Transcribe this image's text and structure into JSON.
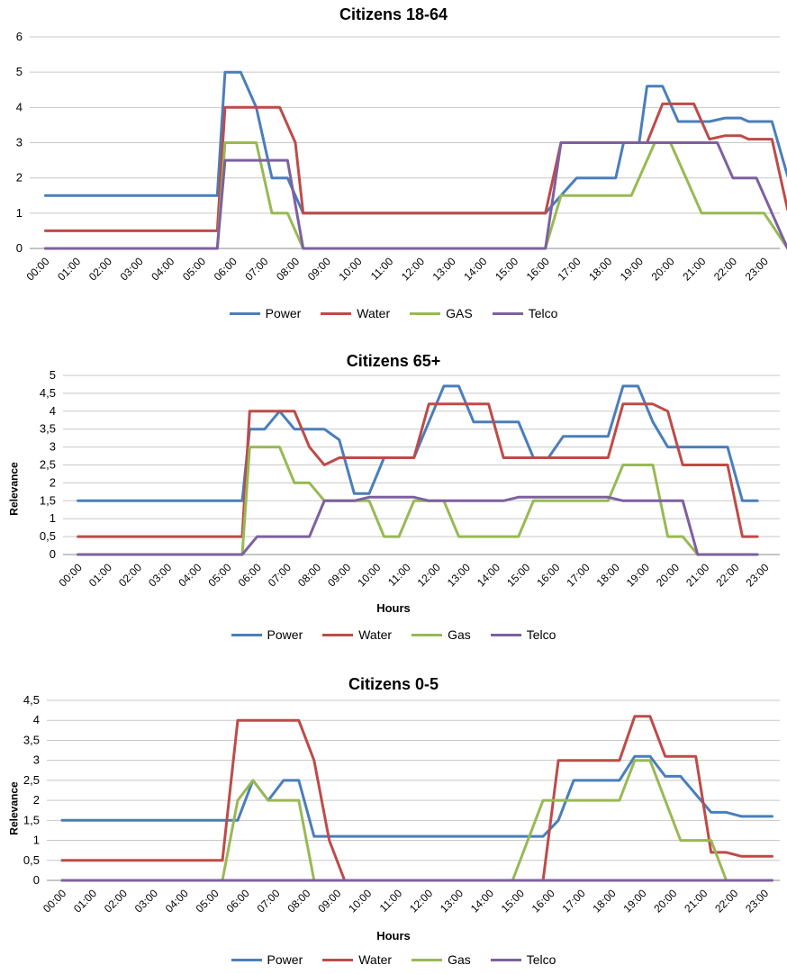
{
  "colors": {
    "Power": "#4a7ebb",
    "Water": "#be4b48",
    "GAS": "#98b954",
    "Gas": "#98b954",
    "Telco": "#7d60a0"
  },
  "chart_data": [
    {
      "type": "line",
      "title": "Citizens 18-64",
      "xlabel": "",
      "ylabel": "",
      "ylim": [
        0,
        6
      ],
      "yticks": [
        "0",
        "1",
        "2",
        "3",
        "4",
        "5",
        "6"
      ],
      "grid": true,
      "legend_position": "bottom",
      "xticks": [
        "00:00",
        "01:00",
        "02:00",
        "03:00",
        "04:00",
        "05:00",
        "06:00",
        "07:00",
        "08:00",
        "09:00",
        "10:00",
        "11:00",
        "12:00",
        "13:00",
        "14:00",
        "15:00",
        "16:00",
        "17:00",
        "18:00",
        "19:00",
        "20:00",
        "21:00",
        "22:00",
        "23:00"
      ],
      "series": [
        {
          "name": "Power",
          "points": [
            [
              0,
              1.5
            ],
            [
              5.5,
              1.5
            ],
            [
              5.75,
              5
            ],
            [
              6.25,
              5
            ],
            [
              6.75,
              4
            ],
            [
              7,
              3
            ],
            [
              7.25,
              2
            ],
            [
              7.75,
              2
            ],
            [
              8.25,
              1
            ],
            [
              16,
              1
            ],
            [
              16.5,
              1.5
            ],
            [
              17,
              2
            ],
            [
              18.25,
              2
            ],
            [
              18.5,
              3
            ],
            [
              19,
              3
            ],
            [
              19.25,
              4.6
            ],
            [
              19.75,
              4.6
            ],
            [
              20.25,
              3.6
            ],
            [
              21,
              3.6
            ],
            [
              21.25,
              3.6
            ],
            [
              21.75,
              3.7
            ],
            [
              22.25,
              3.7
            ],
            [
              22.5,
              3.6
            ],
            [
              23.25,
              3.6
            ],
            [
              23.75,
              2.05
            ]
          ]
        },
        {
          "name": "Water",
          "points": [
            [
              0,
              0.5
            ],
            [
              5.5,
              0.5
            ],
            [
              5.75,
              4
            ],
            [
              7.25,
              4
            ],
            [
              7.5,
              4
            ],
            [
              8,
              3
            ],
            [
              8.25,
              1
            ],
            [
              16,
              1
            ],
            [
              16.5,
              3
            ],
            [
              19.25,
              3
            ],
            [
              19.75,
              4.1
            ],
            [
              20.75,
              4.1
            ],
            [
              21.25,
              3.1
            ],
            [
              21.75,
              3.2
            ],
            [
              22.25,
              3.2
            ],
            [
              22.5,
              3.1
            ],
            [
              23.25,
              3.1
            ],
            [
              23.75,
              1.1
            ]
          ]
        },
        {
          "name": "GAS",
          "points": [
            [
              0,
              0
            ],
            [
              5.5,
              0
            ],
            [
              5.75,
              3
            ],
            [
              6.75,
              3
            ],
            [
              7.25,
              1
            ],
            [
              7.75,
              1
            ],
            [
              8.25,
              0
            ],
            [
              16,
              0
            ],
            [
              16.5,
              1.5
            ],
            [
              18.75,
              1.5
            ],
            [
              19.5,
              3
            ],
            [
              20,
              3
            ],
            [
              21,
              1
            ],
            [
              23,
              1
            ],
            [
              23.75,
              0
            ]
          ]
        },
        {
          "name": "Telco",
          "points": [
            [
              0,
              0
            ],
            [
              5.5,
              0
            ],
            [
              5.75,
              2.5
            ],
            [
              7.75,
              2.5
            ],
            [
              8.25,
              0
            ],
            [
              16,
              0
            ],
            [
              16.5,
              3
            ],
            [
              21.5,
              3
            ],
            [
              22,
              2
            ],
            [
              22.75,
              2
            ],
            [
              23.75,
              0
            ]
          ]
        }
      ]
    },
    {
      "type": "line",
      "title": "Citizens 65+",
      "xlabel": "Hours",
      "ylabel": "Relevance",
      "ylim": [
        0,
        5
      ],
      "yticks": [
        "0",
        "0,5",
        "1",
        "1,5",
        "2",
        "2,5",
        "3",
        "3,5",
        "4",
        "4,5",
        "5"
      ],
      "grid": true,
      "legend_position": "bottom",
      "xticks": [
        "00:00",
        "01:00",
        "02:00",
        "03:00",
        "04:00",
        "05:00",
        "06:00",
        "07:00",
        "08:00",
        "09:00",
        "10:00",
        "11:00",
        "12:00",
        "13:00",
        "14:00",
        "15:00",
        "16:00",
        "17:00",
        "18:00",
        "19:00",
        "20:00",
        "21:00",
        "22:00",
        "23:00"
      ],
      "series": [
        {
          "name": "Power",
          "points": [
            [
              0,
              1.5
            ],
            [
              5.5,
              1.5
            ],
            [
              5.75,
              3.5
            ],
            [
              6.25,
              3.5
            ],
            [
              6.75,
              4
            ],
            [
              7.25,
              3.5
            ],
            [
              8.25,
              3.5
            ],
            [
              8.75,
              3.2
            ],
            [
              9.25,
              1.7
            ],
            [
              9.75,
              1.7
            ],
            [
              10.25,
              2.7
            ],
            [
              11.25,
              2.7
            ],
            [
              11.75,
              3.7
            ],
            [
              12.25,
              4.7
            ],
            [
              12.75,
              4.7
            ],
            [
              13.25,
              3.7
            ],
            [
              14.75,
              3.7
            ],
            [
              15.25,
              2.7
            ],
            [
              15.75,
              2.7
            ],
            [
              16.25,
              3.3
            ],
            [
              17.75,
              3.3
            ],
            [
              18.25,
              4.7
            ],
            [
              18.75,
              4.7
            ],
            [
              19.25,
              3.7
            ],
            [
              19.75,
              3
            ],
            [
              21.75,
              3
            ],
            [
              22.25,
              1.5
            ],
            [
              22.75,
              1.5
            ]
          ]
        },
        {
          "name": "Water",
          "points": [
            [
              0,
              0.5
            ],
            [
              5.5,
              0.5
            ],
            [
              5.75,
              4
            ],
            [
              7.25,
              4
            ],
            [
              7.75,
              3
            ],
            [
              8.25,
              2.5
            ],
            [
              8.75,
              2.7
            ],
            [
              11.25,
              2.7
            ],
            [
              11.75,
              4.2
            ],
            [
              13.75,
              4.2
            ],
            [
              14.25,
              2.7
            ],
            [
              17.75,
              2.7
            ],
            [
              18.25,
              4.2
            ],
            [
              19.25,
              4.2
            ],
            [
              19.75,
              4
            ],
            [
              20.25,
              2.5
            ],
            [
              21.75,
              2.5
            ],
            [
              22.25,
              0.5
            ],
            [
              22.75,
              0.5
            ]
          ]
        },
        {
          "name": "Gas",
          "points": [
            [
              0,
              0
            ],
            [
              5.5,
              0
            ],
            [
              5.75,
              3
            ],
            [
              6.75,
              3
            ],
            [
              7.25,
              2
            ],
            [
              7.75,
              2
            ],
            [
              8.25,
              1.5
            ],
            [
              9.75,
              1.5
            ],
            [
              10.25,
              0.5
            ],
            [
              10.75,
              0.5
            ],
            [
              11.25,
              1.5
            ],
            [
              12.25,
              1.5
            ],
            [
              12.75,
              0.5
            ],
            [
              14.75,
              0.5
            ],
            [
              15.25,
              1.5
            ],
            [
              17.75,
              1.5
            ],
            [
              18.25,
              2.5
            ],
            [
              19.25,
              2.5
            ],
            [
              19.75,
              0.5
            ],
            [
              20.25,
              0.5
            ],
            [
              20.75,
              0
            ]
          ]
        },
        {
          "name": "Telco",
          "points": [
            [
              0,
              0
            ],
            [
              5.5,
              0
            ],
            [
              6,
              0.5
            ],
            [
              7.75,
              0.5
            ],
            [
              8.25,
              1.5
            ],
            [
              9.25,
              1.5
            ],
            [
              9.75,
              1.6
            ],
            [
              11.25,
              1.6
            ],
            [
              11.75,
              1.5
            ],
            [
              14.25,
              1.5
            ],
            [
              14.75,
              1.6
            ],
            [
              17.75,
              1.6
            ],
            [
              18.25,
              1.5
            ],
            [
              20.25,
              1.5
            ],
            [
              20.75,
              0
            ],
            [
              22.75,
              0
            ]
          ]
        }
      ]
    },
    {
      "type": "line",
      "title": "Citizens 0-5",
      "xlabel": "Hours",
      "ylabel": "Relevance",
      "ylim": [
        0,
        4.5
      ],
      "yticks": [
        "0",
        "0,5",
        "1",
        "1,5",
        "2",
        "2,5",
        "3",
        "3,5",
        "4",
        "4,5"
      ],
      "grid": true,
      "legend_position": "bottom",
      "xticks": [
        "00:00",
        "01:00",
        "02:00",
        "03:00",
        "04:00",
        "05:00",
        "06:00",
        "07:00",
        "08:00",
        "09:00",
        "10:00",
        "11:00",
        "12:00",
        "13:00",
        "14:00",
        "15:00",
        "16:00",
        "17:00",
        "18:00",
        "19:00",
        "20:00",
        "21:00",
        "22:00",
        "23:00"
      ],
      "series": [
        {
          "name": "Power",
          "points": [
            [
              0,
              1.5
            ],
            [
              5.75,
              1.5
            ],
            [
              6.25,
              2.5
            ],
            [
              6.75,
              2
            ],
            [
              7.25,
              2.5
            ],
            [
              7.75,
              2.5
            ],
            [
              8.25,
              1.1
            ],
            [
              15.75,
              1.1
            ],
            [
              16.25,
              1.5
            ],
            [
              16.75,
              2.5
            ],
            [
              17.25,
              2.5
            ],
            [
              18.25,
              2.5
            ],
            [
              18.75,
              3.1
            ],
            [
              19.25,
              3.1
            ],
            [
              19.75,
              2.6
            ],
            [
              20.25,
              2.6
            ],
            [
              21.25,
              1.7
            ],
            [
              21.75,
              1.7
            ],
            [
              22.25,
              1.6
            ],
            [
              23.25,
              1.6
            ]
          ]
        },
        {
          "name": "Water",
          "points": [
            [
              0,
              0.5
            ],
            [
              5.25,
              0.5
            ],
            [
              5.75,
              4
            ],
            [
              7.75,
              4
            ],
            [
              8.25,
              3
            ],
            [
              8.75,
              1
            ],
            [
              9.25,
              0
            ],
            [
              15.75,
              0
            ],
            [
              16.25,
              3
            ],
            [
              18.25,
              3
            ],
            [
              18.75,
              4.1
            ],
            [
              19.25,
              4.1
            ],
            [
              19.75,
              3.1
            ],
            [
              20.75,
              3.1
            ],
            [
              21.25,
              0.7
            ],
            [
              21.75,
              0.7
            ],
            [
              22.25,
              0.6
            ],
            [
              23.25,
              0.6
            ]
          ]
        },
        {
          "name": "Gas",
          "points": [
            [
              0,
              0
            ],
            [
              5.25,
              0
            ],
            [
              5.75,
              2
            ],
            [
              6.25,
              2.5
            ],
            [
              6.75,
              2
            ],
            [
              7.75,
              2
            ],
            [
              8.25,
              0
            ],
            [
              14.75,
              0
            ],
            [
              15.75,
              2
            ],
            [
              17.75,
              2
            ],
            [
              18.25,
              2
            ],
            [
              18.75,
              3
            ],
            [
              19.25,
              3
            ],
            [
              19.75,
              2
            ],
            [
              20.25,
              1
            ],
            [
              21.25,
              1
            ],
            [
              21.75,
              0
            ]
          ]
        },
        {
          "name": "Telco",
          "points": [
            [
              0,
              0
            ],
            [
              23.25,
              0
            ]
          ]
        }
      ]
    }
  ],
  "legends": [
    [
      "Power",
      "Water",
      "GAS",
      "Telco"
    ],
    [
      "Power",
      "Water",
      "Gas",
      "Telco"
    ],
    [
      "Power",
      "Water",
      "Gas",
      "Telco"
    ]
  ]
}
